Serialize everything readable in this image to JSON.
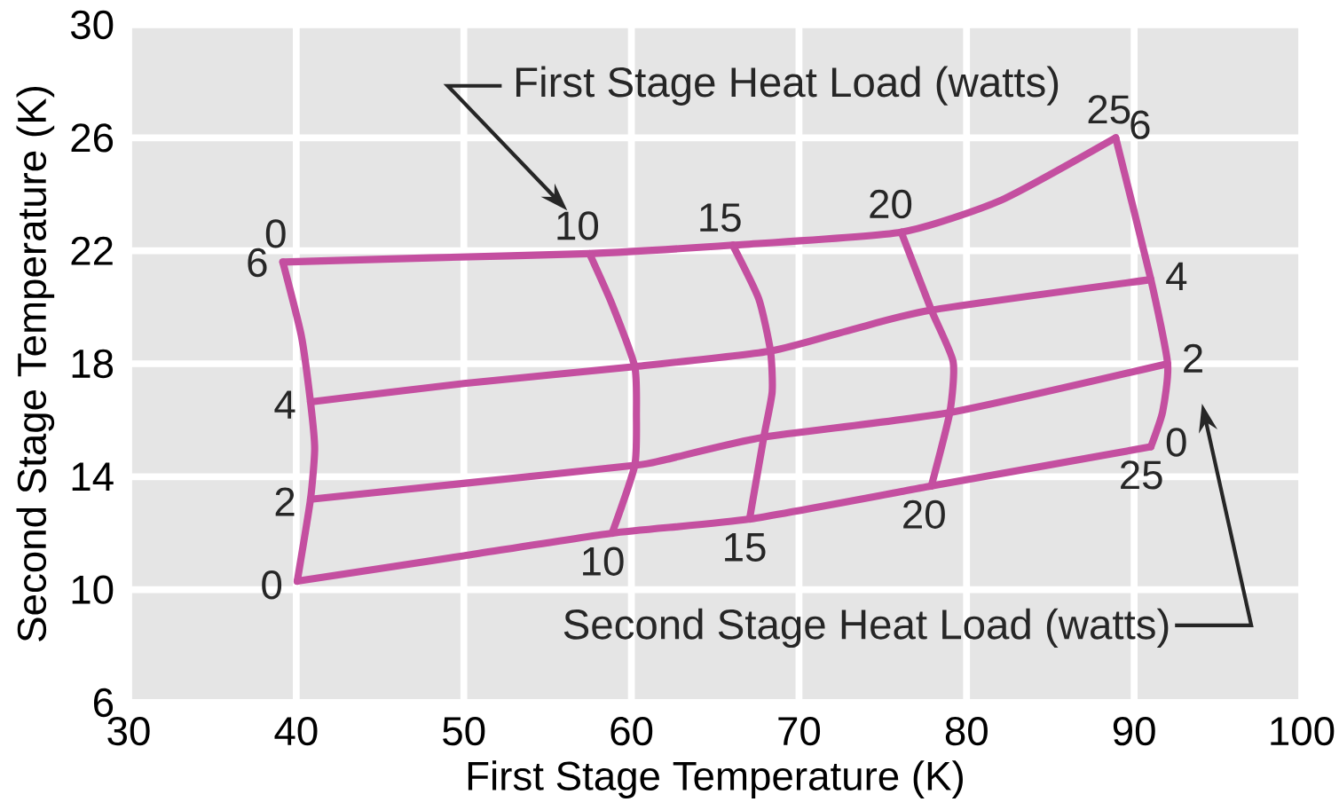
{
  "chart_data": {
    "type": "line",
    "xlabel": "First Stage Temperature (K)",
    "ylabel": "Second Stage Temperature (K)",
    "xlim": [
      30,
      100
    ],
    "ylim": [
      6,
      30
    ],
    "xticks": [
      30,
      40,
      50,
      60,
      70,
      80,
      90,
      100
    ],
    "yticks": [
      6,
      10,
      14,
      18,
      22,
      26,
      30
    ],
    "grid": true,
    "series": [
      {
        "color": "#c44fa0",
        "x": [
          39.2,
          48,
          57.5,
          66.05,
          76.1,
          82.1,
          88.9
        ],
        "values": [
          21.6,
          21.75,
          21.9,
          22.2,
          22.66,
          23.8,
          26
        ]
      },
      {
        "color": "#c44fa0",
        "x": [
          40.85,
          50,
          60.2,
          68.3,
          73.1,
          77.9,
          91.0
        ],
        "values": [
          16.65,
          17.3,
          17.9,
          18.45,
          19.2,
          19.9,
          20.98
        ]
      },
      {
        "color": "#c44fa0",
        "x": [
          40.85,
          50.1,
          60.2,
          62,
          67.9,
          79.0,
          92.0
        ],
        "values": [
          13.2,
          13.77,
          14.4,
          14.6,
          15.4,
          16.27,
          18.0
        ]
      },
      {
        "color": "#c44fa0",
        "x": [
          40.06,
          50,
          58.85,
          67.05,
          77.9,
          91.0
        ],
        "values": [
          10.3,
          11.2,
          12.0,
          12.5,
          13.67,
          15.06
        ]
      },
      {
        "color": "#c44fa0",
        "x": [
          39.2,
          40.3,
          40.85,
          41.1,
          40.85,
          40.06
        ],
        "values": [
          21.6,
          19.0,
          16.65,
          15.0,
          13.2,
          10.3
        ]
      },
      {
        "color": "#c44fa0",
        "x": [
          57.5,
          58.85,
          60.2,
          60.3,
          60.2,
          58.85
        ],
        "values": [
          21.9,
          20.1,
          17.9,
          16.2,
          14.4,
          12.0
        ]
      },
      {
        "color": "#c44fa0",
        "x": [
          66.05,
          67.6,
          68.3,
          68.4,
          67.9,
          67.05
        ],
        "values": [
          22.2,
          20.3,
          18.45,
          17.0,
          15.4,
          12.5
        ]
      },
      {
        "color": "#c44fa0",
        "x": [
          76.1,
          77.9,
          79.2,
          79.0,
          77.9
        ],
        "values": [
          22.66,
          19.9,
          18.07,
          16.27,
          13.67
        ]
      },
      {
        "color": "#c44fa0",
        "x": [
          88.9,
          91.0,
          92.0,
          91.7,
          91.0
        ],
        "values": [
          26,
          20.98,
          18.0,
          16.3,
          15.06
        ]
      }
    ],
    "annotations": [
      {
        "text": "6",
        "x": 39.2,
        "y": 21.6
      },
      {
        "text": "0",
        "x": 39.2,
        "y": 21.6
      },
      {
        "text": "4",
        "x": 40.85,
        "y": 16.65
      },
      {
        "text": "2",
        "x": 40.85,
        "y": 13.2
      },
      {
        "text": "0",
        "x": 40.06,
        "y": 10.3
      },
      {
        "text": "10",
        "x": 57.5,
        "y": 21.9
      },
      {
        "text": "15",
        "x": 66.05,
        "y": 22.2
      },
      {
        "text": "20",
        "x": 76.1,
        "y": 22.66
      },
      {
        "text": "6",
        "x": 88.9,
        "y": 26
      },
      {
        "text": "25",
        "x": 88.9,
        "y": 26
      },
      {
        "text": "4",
        "x": 91.0,
        "y": 20.98
      },
      {
        "text": "2",
        "x": 92.0,
        "y": 18.0
      },
      {
        "text": "0",
        "x": 91.0,
        "y": 15.06
      },
      {
        "text": "25",
        "x": 91.0,
        "y": 15.06
      },
      {
        "text": "20",
        "x": 77.9,
        "y": 13.67
      },
      {
        "text": "15",
        "x": 67.05,
        "y": 12.5
      },
      {
        "text": "10",
        "x": 58.85,
        "y": 12.0
      },
      "First Stage Heat Load (watts)",
      "Second Stage Heat Load (watts)"
    ]
  }
}
